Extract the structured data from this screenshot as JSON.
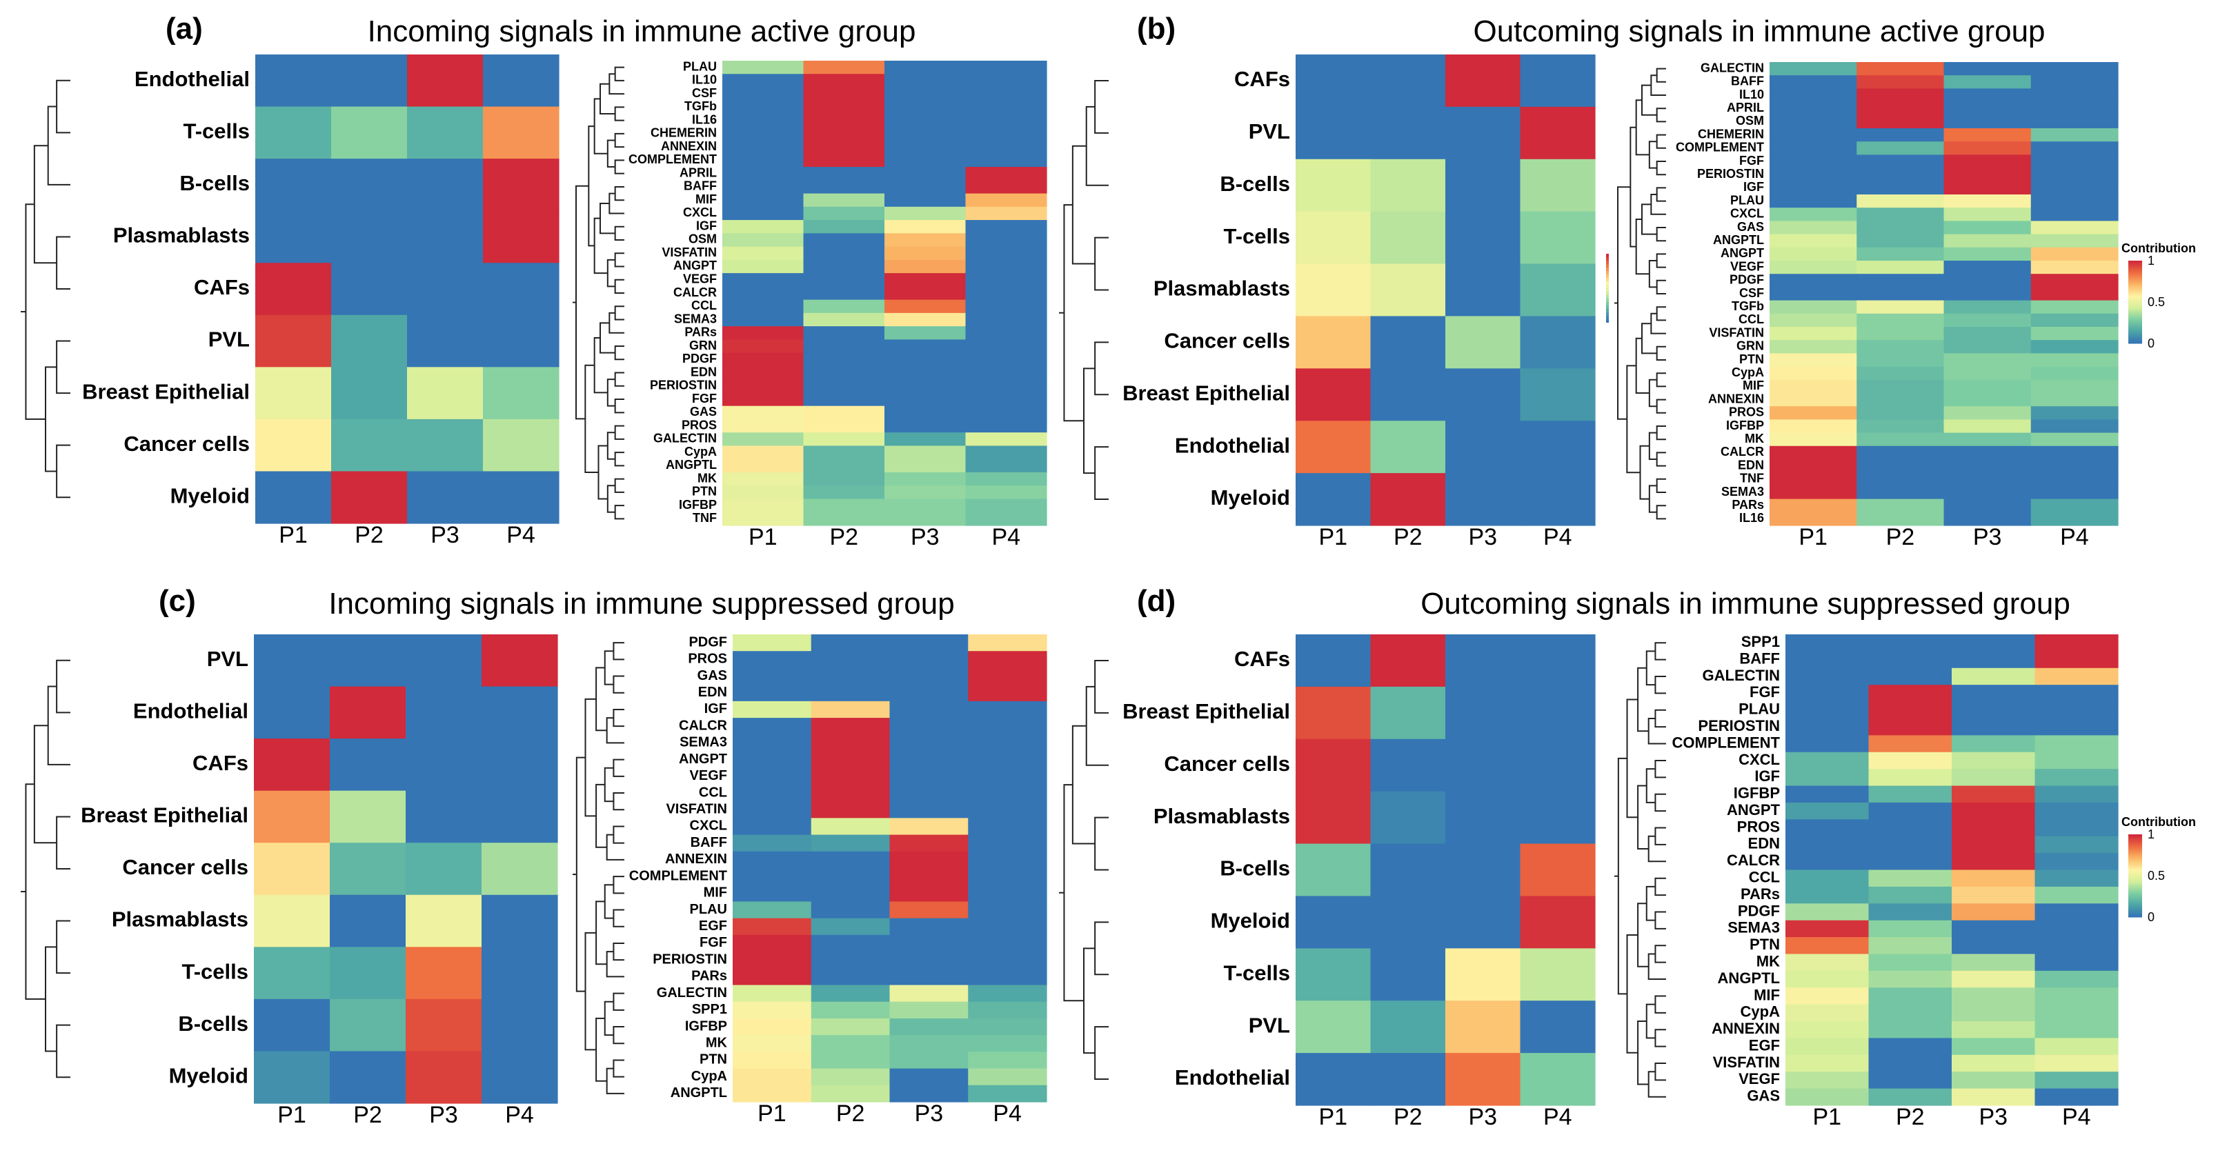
{
  "figure": {
    "column_labels": [
      "P1",
      "P2",
      "P3",
      "P4"
    ],
    "legend_title": "Contribution",
    "legend_ticks": [
      "1",
      "0.5",
      "0"
    ],
    "colors": {
      "c0": "#3575b4",
      "c1": "#4da6a6",
      "c2": "#7fcfa2",
      "c3": "#d5ef9a",
      "c4": "#fef3a3",
      "c5": "#fbb665",
      "c6": "#ee6c3f",
      "c7": "#d02a3b"
    }
  },
  "chart_data": [
    {
      "panel": "(a)",
      "type": "heatmap",
      "title": "Incoming signals in immune active group",
      "columns": [
        "P1",
        "P2",
        "P3",
        "P4"
      ],
      "rows": [
        "Endothelial",
        "T-cells",
        "B-cells",
        "Plasmablasts",
        "CAFs",
        "PVL",
        "Breast Epithelial",
        "Cancer cells",
        "Myeloid"
      ],
      "values": [
        [
          0,
          0,
          1,
          0
        ],
        [
          0.18,
          0.3,
          0.18,
          0.78
        ],
        [
          0,
          0,
          0,
          1
        ],
        [
          0,
          0,
          0,
          1
        ],
        [
          1,
          0,
          0,
          0
        ],
        [
          0.95,
          0.15,
          0,
          0
        ],
        [
          0.5,
          0.15,
          0.45,
          0.3
        ],
        [
          0.58,
          0.18,
          0.18,
          0.38
        ],
        [
          0,
          1,
          0,
          0
        ]
      ],
      "pathways": [
        "PLAU",
        "IL10",
        "CSF",
        "TGFb",
        "IL16",
        "CHEMERIN",
        "ANNEXIN",
        "COMPLEMENT",
        "APRIL",
        "BAFF",
        "MIF",
        "CXCL",
        "IGF",
        "OSM",
        "VISFATIN",
        "ANGPT",
        "VEGF",
        "CALCR",
        "CCL",
        "SEMA3",
        "PARs",
        "GRN",
        "PDGF",
        "EDN",
        "PERIOSTIN",
        "FGF",
        "GAS",
        "PROS",
        "GALECTIN",
        "CypA",
        "ANGPTL",
        "MK",
        "PTN",
        "IGFBP",
        "TNF"
      ],
      "pathway_values": [
        [
          0.35,
          0.82,
          0,
          0
        ],
        [
          0,
          1,
          0,
          0
        ],
        [
          0,
          1,
          0,
          0
        ],
        [
          0,
          1,
          0,
          0
        ],
        [
          0,
          1,
          0,
          0
        ],
        [
          0,
          1,
          0,
          0
        ],
        [
          0,
          1,
          0,
          0
        ],
        [
          0,
          1,
          0,
          0
        ],
        [
          0,
          0,
          0,
          1
        ],
        [
          0,
          0,
          0,
          1
        ],
        [
          0,
          0.35,
          0,
          0.72
        ],
        [
          0,
          0.25,
          0.38,
          0.65
        ],
        [
          0.42,
          0.2,
          0.58,
          0
        ],
        [
          0.38,
          0,
          0.7,
          0
        ],
        [
          0.45,
          0,
          0.72,
          0
        ],
        [
          0.42,
          0,
          0.75,
          0
        ],
        [
          0,
          0,
          1,
          0
        ],
        [
          0,
          0,
          1,
          0
        ],
        [
          0,
          0.3,
          0.85,
          0
        ],
        [
          0,
          0.4,
          0.6,
          0
        ],
        [
          1,
          0,
          0.25,
          0
        ],
        [
          0.98,
          0,
          0,
          0
        ],
        [
          1,
          0,
          0,
          0
        ],
        [
          1,
          0,
          0,
          0
        ],
        [
          1,
          0,
          0,
          0
        ],
        [
          1,
          0,
          0,
          0
        ],
        [
          0.55,
          0.58,
          0,
          0
        ],
        [
          0.55,
          0.58,
          0,
          0
        ],
        [
          0.35,
          0.45,
          0.15,
          0.45
        ],
        [
          0.6,
          0.2,
          0.38,
          0.12
        ],
        [
          0.6,
          0.2,
          0.38,
          0.12
        ],
        [
          0.5,
          0.2,
          0.3,
          0.25
        ],
        [
          0.48,
          0.22,
          0.32,
          0.3
        ],
        [
          0.5,
          0.3,
          0.3,
          0.25
        ],
        [
          0.5,
          0.3,
          0.3,
          0.25
        ]
      ]
    },
    {
      "panel": "(b)",
      "type": "heatmap",
      "title": "Outcoming signals in immune active group",
      "columns": [
        "P1",
        "P2",
        "P3",
        "P4"
      ],
      "rows": [
        "CAFs",
        "PVL",
        "B-cells",
        "T-cells",
        "Plasmablasts",
        "Cancer cells",
        "Breast Epithelial",
        "Endothelial",
        "Myeloid"
      ],
      "values": [
        [
          0,
          0,
          1,
          0
        ],
        [
          0,
          0,
          0,
          1
        ],
        [
          0.45,
          0.4,
          0,
          0.35
        ],
        [
          0.5,
          0.38,
          0,
          0.3
        ],
        [
          0.55,
          0.48,
          0,
          0.2
        ],
        [
          0.68,
          0,
          0.35,
          0.05
        ],
        [
          1,
          0,
          0,
          0.1
        ],
        [
          0.85,
          0.3,
          0,
          0
        ],
        [
          0,
          1,
          0,
          0
        ]
      ],
      "pathways": [
        "GALECTIN",
        "BAFF",
        "IL10",
        "APRIL",
        "OSM",
        "CHEMERIN",
        "COMPLEMENT",
        "FGF",
        "PERIOSTIN",
        "IGF",
        "PLAU",
        "CXCL",
        "GAS",
        "ANGPTL",
        "ANGPT",
        "VEGF",
        "PDGF",
        "CSF",
        "TGFb",
        "CCL",
        "VISFATIN",
        "GRN",
        "PTN",
        "CypA",
        "MIF",
        "ANNEXIN",
        "PROS",
        "IGFBP",
        "MK",
        "CALCR",
        "EDN",
        "TNF",
        "SEMA3",
        "PARs",
        "IL16"
      ],
      "pathway_values": [
        [
          0.18,
          0.88,
          0,
          0
        ],
        [
          0,
          0.95,
          0.18,
          0
        ],
        [
          0,
          1,
          0,
          0
        ],
        [
          0,
          1,
          0,
          0
        ],
        [
          0,
          1,
          0,
          0
        ],
        [
          0,
          0,
          0.85,
          0.25
        ],
        [
          0,
          0.2,
          0.9,
          0
        ],
        [
          0,
          0,
          1,
          0
        ],
        [
          0,
          0,
          1,
          0
        ],
        [
          0,
          0,
          1,
          0
        ],
        [
          0,
          0.5,
          0.55,
          0
        ],
        [
          0.3,
          0.2,
          0.4,
          0
        ],
        [
          0.38,
          0.2,
          0.28,
          0.48
        ],
        [
          0.45,
          0.2,
          0.38,
          0.38
        ],
        [
          0.42,
          0.25,
          0.3,
          0.68
        ],
        [
          0.4,
          0.42,
          0,
          0.62
        ],
        [
          0,
          0,
          0,
          1
        ],
        [
          0,
          0,
          0,
          1
        ],
        [
          0.35,
          0.5,
          0.2,
          0.3
        ],
        [
          0.38,
          0.3,
          0.25,
          0.2
        ],
        [
          0.45,
          0.3,
          0.2,
          0.3
        ],
        [
          0.38,
          0.25,
          0.2,
          0.15
        ],
        [
          0.55,
          0.25,
          0.3,
          0.3
        ],
        [
          0.58,
          0.22,
          0.3,
          0.28
        ],
        [
          0.6,
          0.2,
          0.28,
          0.3
        ],
        [
          0.6,
          0.2,
          0.28,
          0.3
        ],
        [
          0.72,
          0.2,
          0.35,
          0.1
        ],
        [
          0.58,
          0.22,
          0.42,
          0.05
        ],
        [
          0.55,
          0.25,
          0.25,
          0.3
        ],
        [
          1,
          0,
          0,
          0
        ],
        [
          1,
          0,
          0,
          0
        ],
        [
          1,
          0,
          0,
          0
        ],
        [
          1,
          0,
          0,
          0
        ],
        [
          0.75,
          0.3,
          0,
          0.15
        ],
        [
          0.75,
          0.3,
          0,
          0.15
        ]
      ]
    },
    {
      "panel": "(c)",
      "type": "heatmap",
      "title": "Incoming signals in immune suppressed group",
      "columns": [
        "P1",
        "P2",
        "P3",
        "P4"
      ],
      "rows": [
        "PVL",
        "Endothelial",
        "CAFs",
        "Breast Epithelial",
        "Cancer cells",
        "Plasmablasts",
        "T-cells",
        "B-cells",
        "Myeloid"
      ],
      "values": [
        [
          0,
          0,
          0,
          1
        ],
        [
          0,
          1,
          0,
          0
        ],
        [
          1,
          0,
          0,
          0
        ],
        [
          0.78,
          0.38,
          0,
          0
        ],
        [
          0.62,
          0.2,
          0.18,
          0.35
        ],
        [
          0.52,
          0,
          0.52,
          0
        ],
        [
          0.18,
          0.15,
          0.85,
          0
        ],
        [
          0,
          0.2,
          0.92,
          0
        ],
        [
          0.08,
          0,
          0.95,
          0
        ]
      ],
      "pathways": [
        "PDGF",
        "PROS",
        "GAS",
        "EDN",
        "IGF",
        "CALCR",
        "SEMA3",
        "ANGPT",
        "VEGF",
        "CCL",
        "VISFATIN",
        "CXCL",
        "BAFF",
        "ANNEXIN",
        "COMPLEMENT",
        "MIF",
        "PLAU",
        "EGF",
        "FGF",
        "PERIOSTIN",
        "PARs",
        "GALECTIN",
        "SPP1",
        "IGFBP",
        "MK",
        "PTN",
        "CypA",
        "ANGPTL"
      ],
      "pathway_values": [
        [
          0.45,
          0,
          0,
          0.62
        ],
        [
          0,
          0,
          0,
          1
        ],
        [
          0,
          0,
          0,
          1
        ],
        [
          0,
          0,
          0,
          1
        ],
        [
          0.45,
          0.65,
          0,
          0
        ],
        [
          0,
          1,
          0,
          0
        ],
        [
          0,
          1,
          0,
          0
        ],
        [
          0,
          1,
          0,
          0
        ],
        [
          0,
          1,
          0,
          0
        ],
        [
          0,
          1,
          0,
          0
        ],
        [
          0,
          1,
          0,
          0
        ],
        [
          0,
          0.45,
          0.62,
          0
        ],
        [
          0.1,
          0.12,
          0.98,
          0
        ],
        [
          0,
          0,
          1,
          0
        ],
        [
          0,
          0,
          1,
          0
        ],
        [
          0,
          0,
          1,
          0
        ],
        [
          0.2,
          0,
          0.88,
          0
        ],
        [
          0.95,
          0.12,
          0,
          0
        ],
        [
          1,
          0,
          0,
          0
        ],
        [
          1,
          0,
          0,
          0
        ],
        [
          1,
          0,
          0,
          0
        ],
        [
          0.45,
          0.15,
          0.5,
          0.15
        ],
        [
          0.55,
          0.3,
          0.35,
          0.2
        ],
        [
          0.58,
          0.38,
          0.22,
          0.22
        ],
        [
          0.55,
          0.3,
          0.25,
          0.25
        ],
        [
          0.58,
          0.3,
          0.25,
          0.3
        ],
        [
          0.6,
          0.38,
          0,
          0.35
        ],
        [
          0.6,
          0.4,
          0,
          0.18
        ]
      ]
    },
    {
      "panel": "(d)",
      "type": "heatmap",
      "title": "Outcoming signals in immune suppressed group",
      "columns": [
        "P1",
        "P2",
        "P3",
        "P4"
      ],
      "rows": [
        "CAFs",
        "Breast Epithelial",
        "Cancer cells",
        "Plasmablasts",
        "B-cells",
        "Myeloid",
        "T-cells",
        "PVL",
        "Endothelial"
      ],
      "values": [
        [
          0,
          1,
          0,
          0
        ],
        [
          0.92,
          0.2,
          0,
          0
        ],
        [
          0.98,
          0,
          0,
          0
        ],
        [
          0.98,
          0.05,
          0,
          0
        ],
        [
          0.25,
          0,
          0,
          0.88
        ],
        [
          0,
          0,
          0,
          0.98
        ],
        [
          0.18,
          0,
          0.58,
          0.4
        ],
        [
          0.32,
          0.15,
          0.68,
          0
        ],
        [
          0,
          0,
          0.85,
          0.28
        ]
      ],
      "pathways": [
        "SPP1",
        "BAFF",
        "GALECTIN",
        "FGF",
        "PLAU",
        "PERIOSTIN",
        "COMPLEMENT",
        "CXCL",
        "IGF",
        "IGFBP",
        "ANGPT",
        "PROS",
        "EDN",
        "CALCR",
        "CCL",
        "PARs",
        "PDGF",
        "SEMA3",
        "PTN",
        "MK",
        "ANGPTL",
        "MIF",
        "CypA",
        "ANNEXIN",
        "EGF",
        "VISFATIN",
        "VEGF",
        "GAS"
      ],
      "pathway_values": [
        [
          0,
          0,
          0,
          1
        ],
        [
          0,
          0,
          0,
          1
        ],
        [
          0,
          0,
          0.42,
          0.68
        ],
        [
          0,
          1,
          0,
          0
        ],
        [
          0,
          1,
          0,
          0
        ],
        [
          0,
          1,
          0,
          0
        ],
        [
          0,
          0.82,
          0.25,
          0.3
        ],
        [
          0.2,
          0.55,
          0.4,
          0.3
        ],
        [
          0.2,
          0.45,
          0.38,
          0.2
        ],
        [
          0,
          0.2,
          0.95,
          0.1
        ],
        [
          0.12,
          0,
          1,
          0.05
        ],
        [
          0,
          0,
          1,
          0.05
        ],
        [
          0,
          0,
          1,
          0.1
        ],
        [
          0,
          0,
          1,
          0.05
        ],
        [
          0.15,
          0.35,
          0.7,
          0.1
        ],
        [
          0.15,
          0.2,
          0.65,
          0.3
        ],
        [
          0.35,
          0.1,
          0.75,
          0
        ],
        [
          0.98,
          0.3,
          0,
          0
        ],
        [
          0.85,
          0.35,
          0,
          0
        ],
        [
          0.48,
          0.3,
          0.35,
          0
        ],
        [
          0.45,
          0.35,
          0.5,
          0.25
        ],
        [
          0.55,
          0.25,
          0.35,
          0.3
        ],
        [
          0.48,
          0.25,
          0.35,
          0.3
        ],
        [
          0.45,
          0.25,
          0.4,
          0.3
        ],
        [
          0.42,
          0,
          0.3,
          0.42
        ],
        [
          0.45,
          0,
          0.45,
          0.5
        ],
        [
          0.38,
          0,
          0.35,
          0.2
        ],
        [
          0.35,
          0.2,
          0.5,
          0
        ]
      ]
    }
  ]
}
